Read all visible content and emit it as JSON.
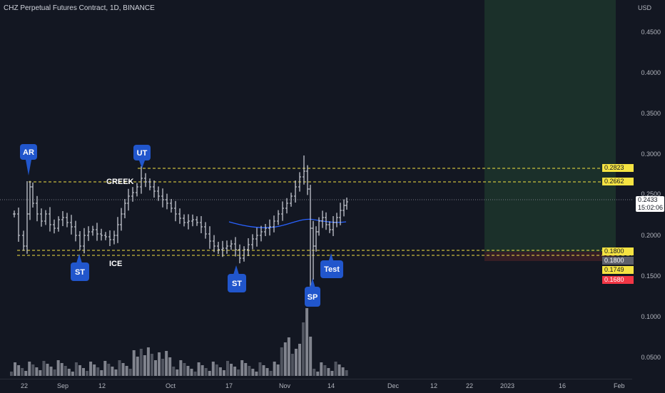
{
  "header": {
    "title": "CHZ Perpetual Futures Contract, 1D, BINANCE"
  },
  "price_axis": {
    "currency": "USD",
    "ticks": [
      "0.4500",
      "0.4000",
      "0.3500",
      "0.3000",
      "0.2500",
      "0.2000",
      "0.1500",
      "0.1000",
      "0.0500"
    ]
  },
  "time_axis": {
    "ticks": [
      "22",
      "Sep",
      "12",
      "Oct",
      "17",
      "Nov",
      "14",
      "Dec",
      "12",
      "22",
      "2023",
      "16",
      "Feb"
    ]
  },
  "price_tags": {
    "current": {
      "value": "0.2433",
      "countdown": "15:02:06"
    },
    "lines": [
      {
        "value": "0.2823",
        "color": "#f5e342"
      },
      {
        "value": "0.2662",
        "color": "#f5e342"
      },
      {
        "value": "0.1800",
        "color": "#f5e342"
      },
      {
        "value": "0.1800",
        "color": "#5d606b"
      },
      {
        "value": "0.1749",
        "color": "#f5e342"
      },
      {
        "value": "0.1680",
        "color": "#f23645"
      }
    ]
  },
  "annotations": {
    "ar": "AR",
    "ut": "UT",
    "st1": "ST",
    "st2": "ST",
    "sp": "SP",
    "test": "Test",
    "creek": "CREEK",
    "ice": "ICE"
  },
  "colors": {
    "background": "#131722",
    "candle": "#d1d4dc",
    "volume": "#787b86",
    "level_line": "#f5e342",
    "ma_line": "#2962ff",
    "label_fill": "#2156cc",
    "target_zone": "#1f3a2d",
    "stop_zone": "#3a1f26"
  },
  "chart_data": {
    "type": "candlestick",
    "symbol": "CHZ Perpetual Futures Contract",
    "interval": "1D",
    "exchange": "BINANCE",
    "ylim": [
      0.0,
      0.48
    ],
    "price_levels": [
      0.2823,
      0.2662,
      0.18,
      0.1749,
      0.168
    ],
    "last_price": 0.2433,
    "wyckoff_labels": [
      "AR",
      "UT",
      "ST",
      "ICE",
      "CREEK",
      "ST",
      "SP",
      "Test"
    ]
  }
}
